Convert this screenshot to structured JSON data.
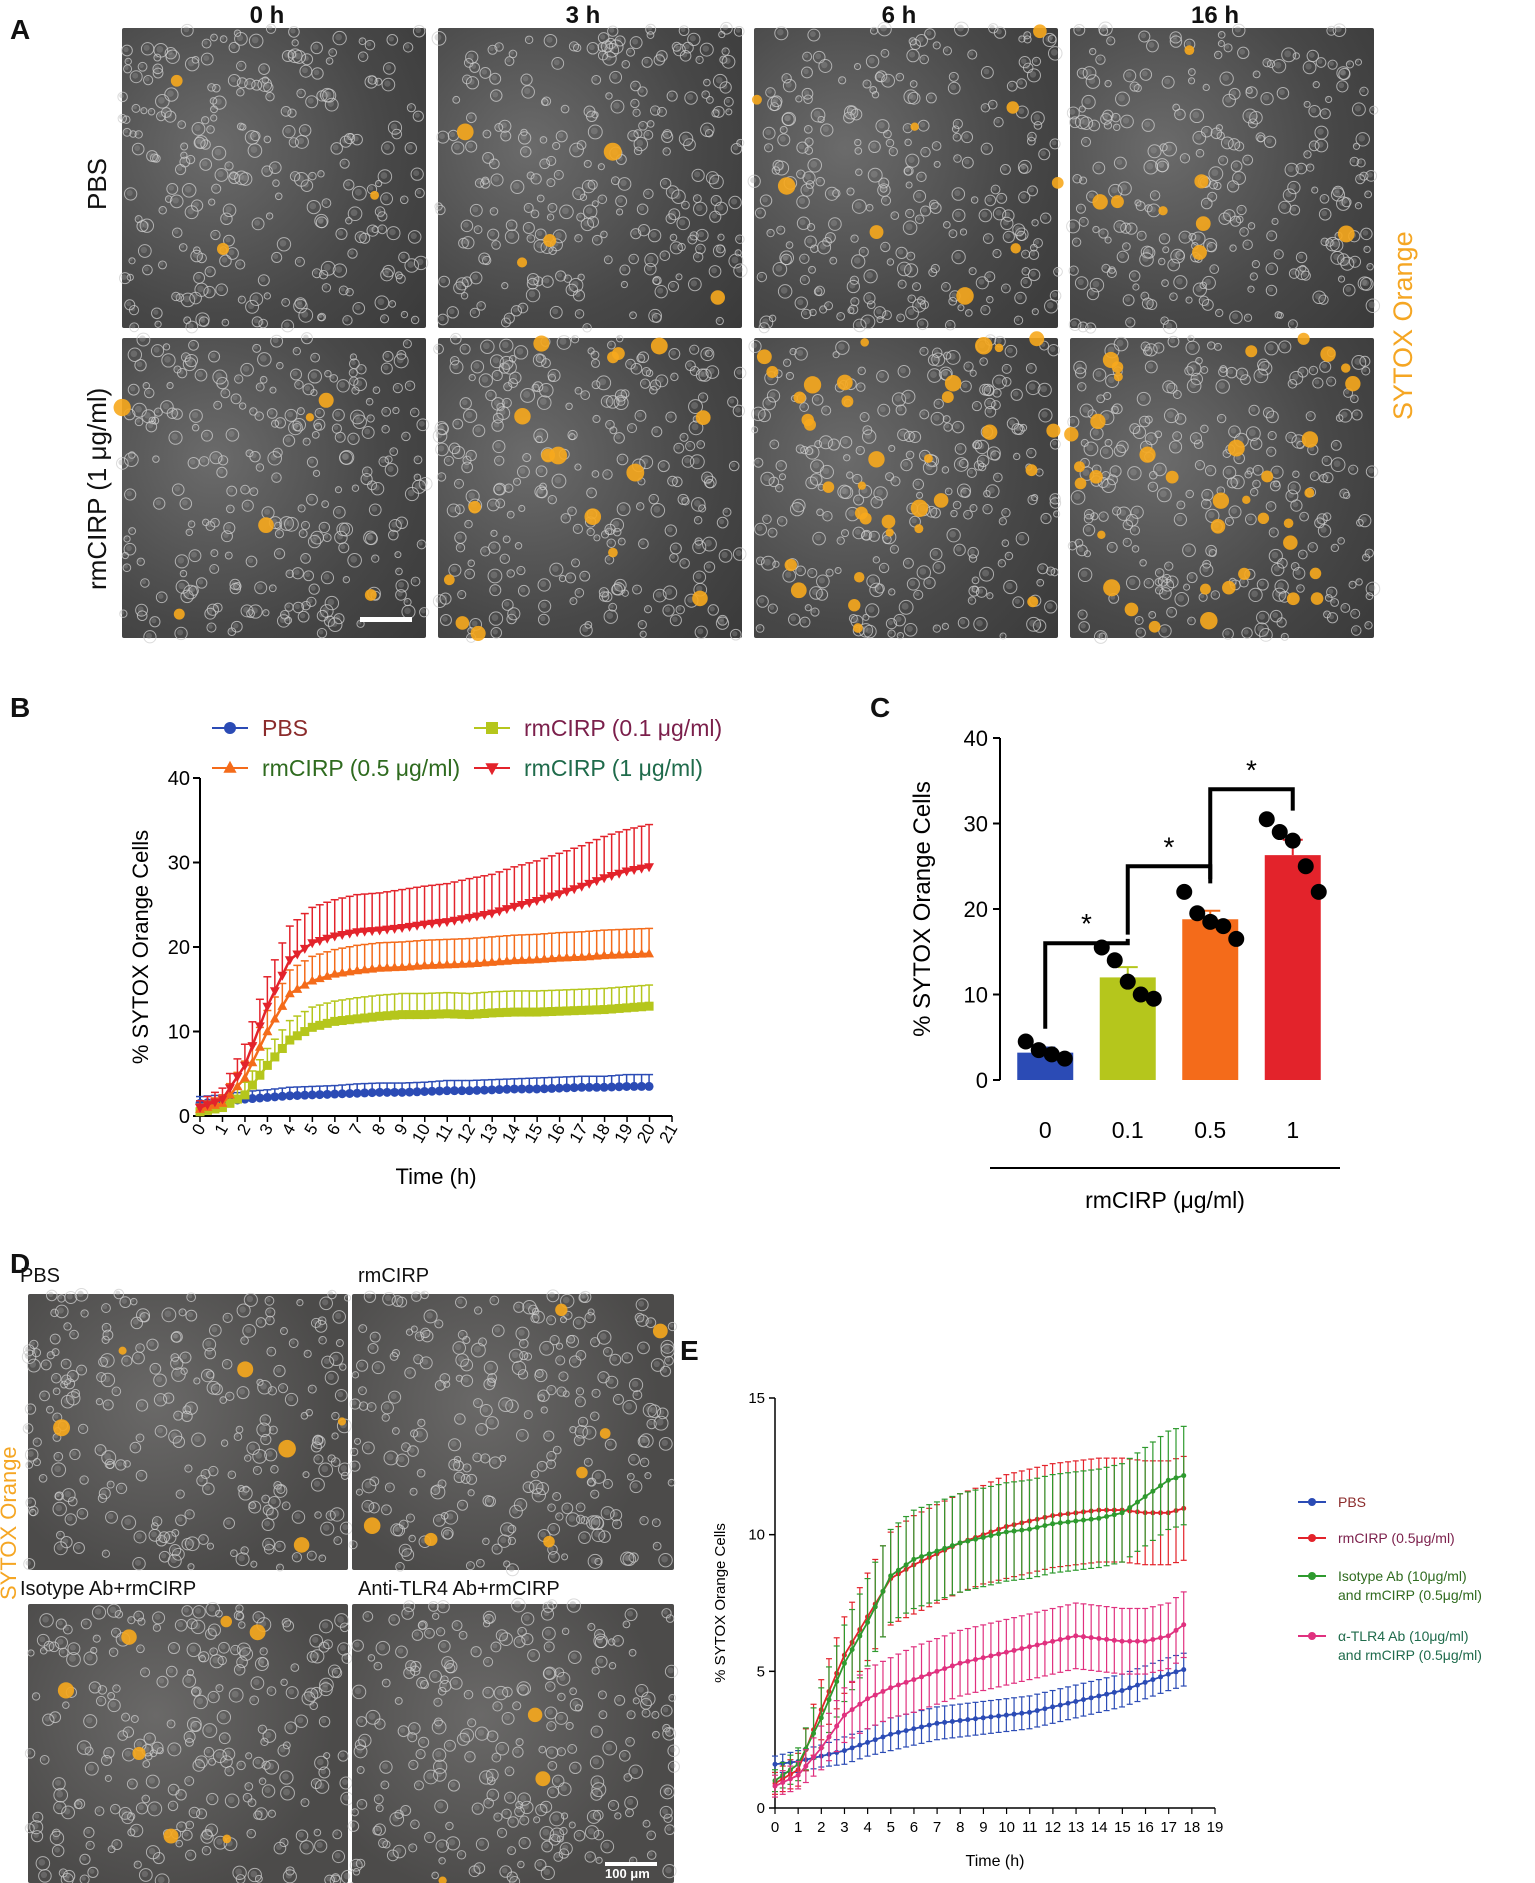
{
  "panel_labels": {
    "a": "A",
    "b": "B",
    "c": "C",
    "d": "D",
    "e": "E"
  },
  "panel_a": {
    "time_headers": [
      "0 h",
      "3 h",
      "6 h",
      "16 h"
    ],
    "row_labels": [
      "PBS",
      "rmCIRP (1 μg/ml)"
    ],
    "stain_label": "SYTOX Orange"
  },
  "panel_d": {
    "titles": [
      "PBS",
      "rmCIRP",
      "Isotype Ab+rmCIRP",
      "Anti-TLR4 Ab+rmCIRP"
    ],
    "stain_label": "SYTOX Orange",
    "scale_bar_label": "100 μm"
  },
  "colors": {
    "pbs": "#2b4bb5",
    "rmcirp_01": "#b5c61c",
    "rmcirp_05": "#f46b1a",
    "rmcirp_1": "#e3232b",
    "isotype": "#2e9a2e",
    "tlr4": "#e0317f",
    "sytox": "#f5a623"
  },
  "chart_data": [
    {
      "id": "B",
      "type": "line",
      "title": "",
      "xlabel": "Time (h)",
      "ylabel": "% SYTOX Orange Cells",
      "xlim": [
        0,
        21
      ],
      "ylim": [
        0,
        40
      ],
      "xticks": [
        0,
        1,
        2,
        3,
        4,
        5,
        6,
        7,
        8,
        9,
        10,
        11,
        12,
        13,
        14,
        15,
        16,
        17,
        18,
        19,
        20,
        21
      ],
      "yticks": [
        0,
        10,
        20,
        30,
        40
      ],
      "legend": [
        {
          "label": "PBS",
          "color": "#2b4bb5",
          "marker": "circle"
        },
        {
          "label": "rmCIRP (0.1 μg/ml)",
          "color": "#b5c61c",
          "marker": "square"
        },
        {
          "label": "rmCIRP (0.5 μg/ml)",
          "color": "#f46b1a",
          "marker": "triangle-up"
        },
        {
          "label": "rmCIRP (1 μg/ml)",
          "color": "#e3232b",
          "marker": "triangle-down"
        }
      ],
      "series": [
        {
          "name": "PBS",
          "color": "#2b4bb5",
          "x": [
            0,
            1,
            2,
            3,
            4,
            5,
            6,
            7,
            8,
            9,
            10,
            11,
            12,
            13,
            14,
            15,
            16,
            17,
            18,
            19,
            20
          ],
          "y": [
            1.5,
            1.7,
            2.0,
            2.2,
            2.4,
            2.5,
            2.6,
            2.7,
            2.8,
            2.8,
            2.9,
            3.0,
            3.0,
            3.1,
            3.2,
            3.2,
            3.3,
            3.4,
            3.4,
            3.5,
            3.5
          ],
          "err": [
            0.8,
            0.8,
            0.9,
            0.9,
            1.0,
            1.0,
            1.0,
            1.1,
            1.1,
            1.1,
            1.1,
            1.2,
            1.2,
            1.2,
            1.2,
            1.3,
            1.3,
            1.3,
            1.3,
            1.4,
            1.4
          ]
        },
        {
          "name": "rmCIRP (0.1 μg/ml)",
          "color": "#b5c61c",
          "x": [
            0,
            1,
            2,
            3,
            4,
            5,
            6,
            7,
            8,
            9,
            10,
            11,
            12,
            13,
            14,
            15,
            16,
            17,
            18,
            19,
            20
          ],
          "y": [
            0.5,
            1.0,
            2.5,
            6.0,
            9.0,
            10.5,
            11.2,
            11.5,
            11.8,
            12.0,
            12.0,
            12.1,
            12.0,
            12.2,
            12.3,
            12.3,
            12.4,
            12.5,
            12.6,
            12.8,
            13.0
          ],
          "err": [
            0.5,
            0.8,
            1.5,
            2.0,
            2.3,
            2.4,
            2.4,
            2.5,
            2.5,
            2.5,
            2.5,
            2.5,
            2.5,
            2.5,
            2.5,
            2.5,
            2.5,
            2.5,
            2.5,
            2.5,
            2.5
          ]
        },
        {
          "name": "rmCIRP (0.5 μg/ml)",
          "color": "#f46b1a",
          "x": [
            0,
            1,
            2,
            3,
            4,
            5,
            6,
            7,
            8,
            9,
            10,
            11,
            12,
            13,
            14,
            15,
            16,
            17,
            18,
            19,
            20
          ],
          "y": [
            0.8,
            1.5,
            4.5,
            10.0,
            14.5,
            16.0,
            16.8,
            17.2,
            17.5,
            17.6,
            17.8,
            17.9,
            18.0,
            18.2,
            18.4,
            18.5,
            18.7,
            18.8,
            19.0,
            19.1,
            19.2
          ],
          "err": [
            0.6,
            1.0,
            2.0,
            2.5,
            2.8,
            2.9,
            2.9,
            3.0,
            3.0,
            3.0,
            3.0,
            3.0,
            3.0,
            3.0,
            3.0,
            3.0,
            3.0,
            3.0,
            3.0,
            3.0,
            3.0
          ]
        },
        {
          "name": "rmCIRP (1 μg/ml)",
          "color": "#e3232b",
          "x": [
            0,
            1,
            2,
            3,
            4,
            5,
            6,
            7,
            8,
            9,
            10,
            11,
            12,
            13,
            14,
            15,
            16,
            17,
            18,
            19,
            20
          ],
          "y": [
            1.0,
            2.0,
            6.0,
            13.0,
            18.5,
            20.5,
            21.3,
            21.8,
            22.0,
            22.3,
            22.7,
            23.0,
            23.5,
            24.0,
            24.8,
            25.5,
            26.3,
            27.2,
            28.2,
            29.0,
            29.5
          ],
          "err": [
            0.8,
            1.3,
            2.5,
            3.5,
            4.0,
            4.2,
            4.3,
            4.4,
            4.4,
            4.5,
            4.5,
            4.5,
            4.6,
            4.6,
            4.7,
            4.7,
            4.8,
            4.8,
            4.9,
            4.9,
            5.0
          ]
        }
      ]
    },
    {
      "id": "C",
      "type": "bar",
      "title": "",
      "xlabel": "rmCIRP (μg/ml)",
      "ylabel": "% SYTOX Orange Cells",
      "ylim": [
        0,
        40
      ],
      "yticks": [
        0,
        10,
        20,
        30,
        40
      ],
      "categories": [
        "0",
        "0.1",
        "0.5",
        "1"
      ],
      "values": [
        3.2,
        12.0,
        18.8,
        26.3
      ],
      "sem": [
        0.6,
        1.2,
        1.0,
        1.8
      ],
      "colors": [
        "#2b4bb5",
        "#b5c61c",
        "#f46b1a",
        "#e3232b"
      ],
      "points": [
        [
          4.5,
          3.5,
          3.0,
          2.5
        ],
        [
          15.5,
          14.0,
          11.5,
          10.0,
          9.5
        ],
        [
          22.0,
          19.5,
          18.5,
          18.0,
          16.5
        ],
        [
          30.5,
          29.0,
          28.0,
          25.0,
          22.0
        ]
      ],
      "significance": [
        {
          "pair": [
            "0",
            "0.1"
          ],
          "label": "*"
        },
        {
          "pair": [
            "0.1",
            "0.5"
          ],
          "label": "*"
        },
        {
          "pair": [
            "0.5",
            "1"
          ],
          "label": "*"
        }
      ]
    },
    {
      "id": "E",
      "type": "line",
      "title": "",
      "xlabel": "Time (h)",
      "ylabel": "% SYTOX Orange Cells",
      "xlim": [
        0,
        19
      ],
      "ylim": [
        0,
        15
      ],
      "xticks": [
        0,
        1,
        2,
        3,
        4,
        5,
        6,
        7,
        8,
        9,
        10,
        11,
        12,
        13,
        14,
        15,
        16,
        17,
        18,
        19
      ],
      "yticks": [
        0,
        5,
        10,
        15
      ],
      "legend": [
        {
          "label": "PBS",
          "color": "#2b4bb5"
        },
        {
          "label": "rmCIRP (0.5μg/ml)",
          "color": "#e3232b"
        },
        {
          "label": "Isotype Ab (10μg/ml)",
          "label2": "and rmCIRP (0.5μg/ml)",
          "color": "#2e9a2e"
        },
        {
          "label": "α-TLR4 Ab (10μg/ml)",
          "label2": "and rmCIRP (0.5μg/ml)",
          "color": "#e0317f"
        }
      ],
      "series": [
        {
          "name": "PBS",
          "color": "#2b4bb5",
          "x": [
            0,
            1,
            2,
            3,
            4,
            5,
            6,
            7,
            8,
            9,
            10,
            11,
            12,
            13,
            14,
            15,
            16,
            17,
            17.8
          ],
          "y": [
            1.6,
            1.7,
            1.9,
            2.1,
            2.4,
            2.7,
            2.9,
            3.1,
            3.2,
            3.3,
            3.4,
            3.5,
            3.7,
            3.9,
            4.1,
            4.3,
            4.6,
            4.9,
            5.1
          ],
          "err": [
            0.3,
            0.4,
            0.4,
            0.5,
            0.5,
            0.6,
            0.6,
            0.6,
            0.6,
            0.6,
            0.6,
            0.6,
            0.6,
            0.6,
            0.6,
            0.6,
            0.6,
            0.6,
            0.6
          ]
        },
        {
          "name": "rmCIRP (0.5μg/ml)",
          "color": "#e3232b",
          "x": [
            0,
            1,
            2,
            3,
            4,
            5,
            6,
            7,
            8,
            9,
            10,
            11,
            12,
            13,
            14,
            15,
            16,
            17,
            17.8
          ],
          "y": [
            0.9,
            1.4,
            3.6,
            5.6,
            7.0,
            8.4,
            8.9,
            9.3,
            9.7,
            10.0,
            10.3,
            10.5,
            10.7,
            10.8,
            10.9,
            10.9,
            10.8,
            10.8,
            11.0
          ],
          "err": [
            0.4,
            0.6,
            1.1,
            1.4,
            1.6,
            1.7,
            1.8,
            1.8,
            1.8,
            1.8,
            1.9,
            1.9,
            1.9,
            1.9,
            1.9,
            1.9,
            1.9,
            1.9,
            1.9
          ]
        },
        {
          "name": "Isotype Ab (10μg/ml) and rmCIRP (0.5μg/ml)",
          "color": "#2e9a2e",
          "x": [
            0,
            1,
            2,
            3,
            4,
            5,
            6,
            7,
            8,
            9,
            10,
            11,
            12,
            13,
            14,
            15,
            16,
            17,
            17.8
          ],
          "y": [
            1.0,
            1.6,
            3.3,
            5.3,
            6.8,
            8.5,
            9.1,
            9.4,
            9.7,
            9.9,
            10.1,
            10.2,
            10.4,
            10.5,
            10.6,
            10.8,
            11.4,
            12.0,
            12.2
          ],
          "err": [
            0.4,
            0.6,
            1.1,
            1.4,
            1.6,
            1.7,
            1.8,
            1.8,
            1.8,
            1.8,
            1.8,
            1.8,
            1.8,
            1.8,
            1.8,
            1.8,
            1.8,
            1.8,
            1.8
          ]
        },
        {
          "name": "α-TLR4 Ab (10μg/ml) and rmCIRP (0.5μg/ml)",
          "color": "#e0317f",
          "x": [
            0,
            1,
            2,
            3,
            4,
            5,
            6,
            7,
            8,
            9,
            10,
            11,
            12,
            13,
            14,
            15,
            16,
            17,
            17.8
          ],
          "y": [
            0.8,
            1.2,
            2.2,
            3.4,
            4.0,
            4.4,
            4.7,
            5.0,
            5.3,
            5.5,
            5.7,
            5.9,
            6.1,
            6.3,
            6.2,
            6.1,
            6.1,
            6.3,
            6.8
          ],
          "err": [
            0.4,
            0.5,
            0.8,
            1.0,
            1.1,
            1.1,
            1.2,
            1.2,
            1.2,
            1.2,
            1.2,
            1.2,
            1.2,
            1.2,
            1.2,
            1.2,
            1.2,
            1.2,
            1.2
          ]
        }
      ]
    }
  ]
}
